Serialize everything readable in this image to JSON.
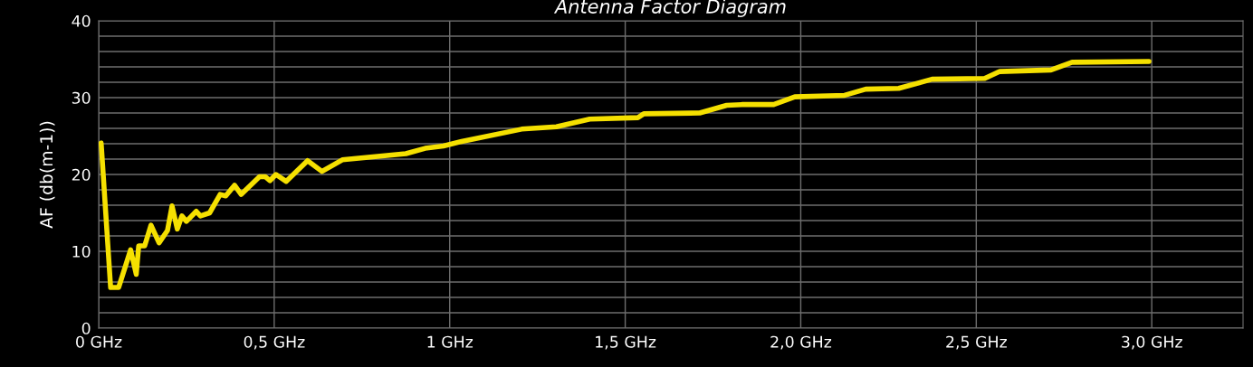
{
  "chart_data": {
    "type": "line",
    "title": "Antenna Factor Diagram",
    "ylabel": "AF (db(m-1))",
    "x": [
      0.007,
      0.034,
      0.057,
      0.091,
      0.107,
      0.114,
      0.131,
      0.149,
      0.172,
      0.196,
      0.209,
      0.224,
      0.237,
      0.25,
      0.278,
      0.29,
      0.316,
      0.346,
      0.362,
      0.387,
      0.406,
      0.458,
      0.475,
      0.488,
      0.505,
      0.534,
      0.595,
      0.636,
      0.694,
      0.875,
      0.93,
      0.982,
      1.034,
      1.205,
      1.304,
      1.399,
      1.536,
      1.553,
      1.712,
      1.789,
      1.832,
      1.923,
      1.983,
      2.125,
      2.185,
      2.279,
      2.374,
      2.524,
      2.567,
      2.713,
      2.773,
      2.992
    ],
    "series": [
      {
        "color": "#f5e000",
        "values": [
          24.1,
          5.3,
          5.3,
          10.2,
          7.0,
          10.7,
          10.7,
          13.4,
          11.1,
          12.7,
          15.9,
          12.9,
          14.6,
          13.9,
          15.2,
          14.6,
          15.0,
          17.4,
          17.2,
          18.6,
          17.4,
          19.7,
          19.7,
          19.2,
          20.0,
          19.1,
          21.8,
          20.4,
          21.9,
          22.7,
          23.4,
          23.7,
          24.3,
          25.9,
          26.2,
          27.2,
          27.4,
          27.9,
          28.0,
          29.0,
          29.1,
          29.1,
          30.1,
          30.3,
          31.1,
          31.2,
          32.4,
          32.5,
          33.4,
          33.6,
          34.6,
          34.7
        ]
      }
    ],
    "xlim": [
      0,
      3.26
    ],
    "ylim": [
      0,
      40
    ],
    "xticks": [
      {
        "value": 0,
        "label": "0 GHz"
      },
      {
        "value": 0.5,
        "label": "0,5 GHz"
      },
      {
        "value": 1,
        "label": "1 GHz"
      },
      {
        "value": 1.5,
        "label": "1,5 GHz"
      },
      {
        "value": 2,
        "label": "2,0 GHz"
      },
      {
        "value": 2.5,
        "label": "2,5 GHz"
      },
      {
        "value": 3,
        "label": "3,0 GHz"
      }
    ],
    "yticks": [
      0,
      {
        "value": 2,
        "label": null
      },
      {
        "value": 4,
        "label": null
      },
      {
        "value": 6,
        "label": null
      },
      {
        "value": 8,
        "label": null
      },
      10,
      {
        "value": 12,
        "label": null
      },
      {
        "value": 14,
        "label": null
      },
      {
        "value": 16,
        "label": null
      },
      {
        "value": 18,
        "label": null
      },
      20,
      {
        "value": 22,
        "label": null
      },
      {
        "value": 24,
        "label": null
      },
      {
        "value": 26,
        "label": null
      },
      {
        "value": 28,
        "label": null
      },
      30,
      {
        "value": 32,
        "label": null
      },
      {
        "value": 34,
        "label": null
      },
      {
        "value": 36,
        "label": null
      },
      {
        "value": 38,
        "label": null
      },
      40
    ],
    "grid": true,
    "legend": false,
    "marker": "none",
    "line_style": "solid"
  }
}
